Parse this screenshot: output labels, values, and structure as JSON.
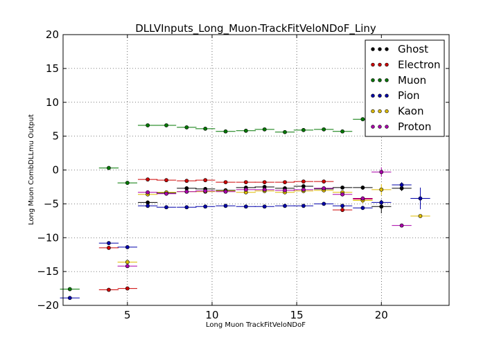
{
  "chart_data": {
    "type": "scatter",
    "title": "DLLVInputs_Long_Muon-TrackFitVeloNDoF_Liny",
    "xlabel": "Long Muon TrackFitVeloNDoF",
    "ylabel": "Long Muon CombDLLmu Output",
    "xlim": [
      1.2,
      24
    ],
    "ylim": [
      -20,
      20
    ],
    "x_ticks": [
      5,
      10,
      15,
      20
    ],
    "y_ticks": [
      -20,
      -15,
      -10,
      -5,
      0,
      5,
      10,
      15,
      20
    ],
    "x_tick_labels": [
      "5",
      "10",
      "15",
      "20"
    ],
    "y_tick_labels": [
      "−20",
      "−15",
      "−10",
      "−5",
      "0",
      "5",
      "10",
      "15",
      "20"
    ],
    "grid": true,
    "legend_position": "top-right",
    "x_err": 0.58,
    "series": [
      {
        "name": "Ghost",
        "color": "#000000",
        "points": [
          {
            "x": 6.2,
            "y": -4.8,
            "ye": 0.3
          },
          {
            "x": 7.3,
            "y": -3.4,
            "ye": 0.2
          },
          {
            "x": 8.5,
            "y": -2.7,
            "ye": 0.2
          },
          {
            "x": 9.6,
            "y": -2.8,
            "ye": 0.2
          },
          {
            "x": 10.8,
            "y": -3.0,
            "ye": 0.2
          },
          {
            "x": 12.0,
            "y": -2.6,
            "ye": 0.2
          },
          {
            "x": 13.1,
            "y": -2.5,
            "ye": 0.2
          },
          {
            "x": 14.3,
            "y": -2.7,
            "ye": 0.2
          },
          {
            "x": 15.4,
            "y": -2.4,
            "ye": 0.2
          },
          {
            "x": 16.6,
            "y": -2.8,
            "ye": 0.2
          },
          {
            "x": 17.7,
            "y": -2.6,
            "ye": 0.2
          },
          {
            "x": 18.9,
            "y": -2.6,
            "ye": 0.3
          },
          {
            "x": 20.0,
            "y": -5.4,
            "ye": 1.0
          },
          {
            "x": 21.2,
            "y": -2.7,
            "ye": 0.4
          }
        ]
      },
      {
        "name": "Electron",
        "color": "#cc0000",
        "points": [
          {
            "x": 3.9,
            "y": -17.7,
            "ye": 0.2
          },
          {
            "x": 3.9,
            "y": -11.5,
            "ye": 0.2
          },
          {
            "x": 5.0,
            "y": -17.5,
            "ye": 0.2
          },
          {
            "x": 6.2,
            "y": -1.4,
            "ye": 0.2
          },
          {
            "x": 7.3,
            "y": -1.5,
            "ye": 0.2
          },
          {
            "x": 8.5,
            "y": -1.6,
            "ye": 0.2
          },
          {
            "x": 9.6,
            "y": -1.5,
            "ye": 0.2
          },
          {
            "x": 10.8,
            "y": -1.8,
            "ye": 0.2
          },
          {
            "x": 12.0,
            "y": -1.8,
            "ye": 0.2
          },
          {
            "x": 13.1,
            "y": -1.8,
            "ye": 0.2
          },
          {
            "x": 14.3,
            "y": -1.8,
            "ye": 0.2
          },
          {
            "x": 15.4,
            "y": -1.7,
            "ye": 0.2
          },
          {
            "x": 16.6,
            "y": -1.7,
            "ye": 0.2
          },
          {
            "x": 17.7,
            "y": -5.9,
            "ye": 0.3
          },
          {
            "x": 18.9,
            "y": -4.3,
            "ye": 0.3
          }
        ]
      },
      {
        "name": "Muon",
        "color": "#007700",
        "points": [
          {
            "x": 1.6,
            "y": -17.6,
            "ye": 0.2
          },
          {
            "x": 3.9,
            "y": 0.3,
            "ye": 0.2
          },
          {
            "x": 5.0,
            "y": -1.9,
            "ye": 0.2
          },
          {
            "x": 6.2,
            "y": 6.6,
            "ye": 0.2
          },
          {
            "x": 7.3,
            "y": 6.6,
            "ye": 0.2
          },
          {
            "x": 8.5,
            "y": 6.3,
            "ye": 0.2
          },
          {
            "x": 9.6,
            "y": 6.1,
            "ye": 0.2
          },
          {
            "x": 10.8,
            "y": 5.7,
            "ye": 0.2
          },
          {
            "x": 12.0,
            "y": 5.8,
            "ye": 0.2
          },
          {
            "x": 13.1,
            "y": 6.0,
            "ye": 0.2
          },
          {
            "x": 14.3,
            "y": 5.6,
            "ye": 0.2
          },
          {
            "x": 15.4,
            "y": 5.9,
            "ye": 0.2
          },
          {
            "x": 16.6,
            "y": 6.0,
            "ye": 0.2
          },
          {
            "x": 17.7,
            "y": 5.7,
            "ye": 0.2
          },
          {
            "x": 18.9,
            "y": 7.5,
            "ye": 0.2
          }
        ]
      },
      {
        "name": "Pion",
        "color": "#0000aa",
        "points": [
          {
            "x": 1.6,
            "y": -18.9,
            "ye": 0.2
          },
          {
            "x": 3.9,
            "y": -10.8,
            "ye": 0.2
          },
          {
            "x": 5.0,
            "y": -11.4,
            "ye": 0.2
          },
          {
            "x": 6.2,
            "y": -5.3,
            "ye": 0.2
          },
          {
            "x": 7.3,
            "y": -5.5,
            "ye": 0.2
          },
          {
            "x": 8.5,
            "y": -5.5,
            "ye": 0.2
          },
          {
            "x": 9.6,
            "y": -5.4,
            "ye": 0.2
          },
          {
            "x": 10.8,
            "y": -5.3,
            "ye": 0.2
          },
          {
            "x": 12.0,
            "y": -5.4,
            "ye": 0.2
          },
          {
            "x": 13.1,
            "y": -5.4,
            "ye": 0.2
          },
          {
            "x": 14.3,
            "y": -5.3,
            "ye": 0.2
          },
          {
            "x": 15.4,
            "y": -5.3,
            "ye": 0.2
          },
          {
            "x": 16.6,
            "y": -5.0,
            "ye": 0.2
          },
          {
            "x": 17.7,
            "y": -5.3,
            "ye": 0.3
          },
          {
            "x": 18.9,
            "y": -5.6,
            "ye": 0.3
          },
          {
            "x": 20.0,
            "y": -4.8,
            "ye": 0.4
          },
          {
            "x": 21.2,
            "y": -2.2,
            "ye": 0.4
          },
          {
            "x": 22.3,
            "y": -4.2,
            "ye": 1.6
          }
        ]
      },
      {
        "name": "Kaon",
        "color": "#ddbb00",
        "points": [
          {
            "x": 5.0,
            "y": -13.6,
            "ye": 0.2
          },
          {
            "x": 6.2,
            "y": -3.6,
            "ye": 0.2
          },
          {
            "x": 7.3,
            "y": -3.3,
            "ye": 0.2
          },
          {
            "x": 8.5,
            "y": -3.2,
            "ye": 0.2
          },
          {
            "x": 9.6,
            "y": -3.2,
            "ye": 0.2
          },
          {
            "x": 10.8,
            "y": -3.1,
            "ye": 0.2
          },
          {
            "x": 12.0,
            "y": -3.3,
            "ye": 0.2
          },
          {
            "x": 13.1,
            "y": -3.1,
            "ye": 0.2
          },
          {
            "x": 14.3,
            "y": -3.3,
            "ye": 0.2
          },
          {
            "x": 15.4,
            "y": -3.1,
            "ye": 0.2
          },
          {
            "x": 16.6,
            "y": -3.0,
            "ye": 0.2
          },
          {
            "x": 17.7,
            "y": -3.3,
            "ye": 0.2
          },
          {
            "x": 18.9,
            "y": -4.5,
            "ye": 0.4
          },
          {
            "x": 20.0,
            "y": -2.9,
            "ye": 0.8
          },
          {
            "x": 22.3,
            "y": -6.8,
            "ye": 0.2
          }
        ]
      },
      {
        "name": "Proton",
        "color": "#aa00aa",
        "points": [
          {
            "x": 5.0,
            "y": -14.2,
            "ye": 0.2
          },
          {
            "x": 6.2,
            "y": -3.3,
            "ye": 0.2
          },
          {
            "x": 7.3,
            "y": -3.5,
            "ye": 0.2
          },
          {
            "x": 8.5,
            "y": -3.2,
            "ye": 0.2
          },
          {
            "x": 9.6,
            "y": -3.1,
            "ye": 0.2
          },
          {
            "x": 10.8,
            "y": -3.2,
            "ye": 0.2
          },
          {
            "x": 12.0,
            "y": -2.9,
            "ye": 0.2
          },
          {
            "x": 13.1,
            "y": -2.9,
            "ye": 0.2
          },
          {
            "x": 14.3,
            "y": -3.0,
            "ye": 0.2
          },
          {
            "x": 15.4,
            "y": -2.9,
            "ye": 0.2
          },
          {
            "x": 16.6,
            "y": -2.7,
            "ye": 0.2
          },
          {
            "x": 17.7,
            "y": -3.6,
            "ye": 0.3
          },
          {
            "x": 18.9,
            "y": -4.2,
            "ye": 0.3
          },
          {
            "x": 20.0,
            "y": -0.3,
            "ye": 0.7
          },
          {
            "x": 21.2,
            "y": -8.2,
            "ye": 0.2
          }
        ]
      }
    ]
  }
}
